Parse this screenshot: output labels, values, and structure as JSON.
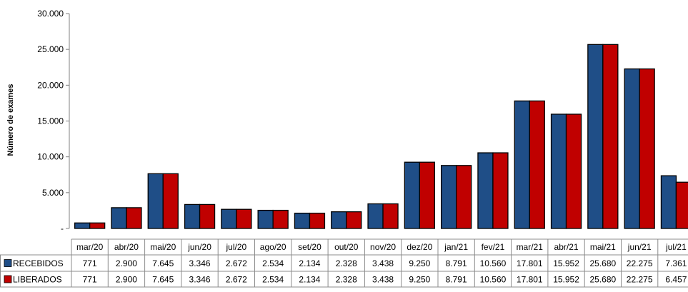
{
  "chart_data": {
    "type": "bar",
    "ylabel": "Número de exames",
    "ylim": [
      0,
      30000
    ],
    "yticks": [
      0,
      5000,
      10000,
      15000,
      20000,
      25000,
      30000
    ],
    "ytick_labels": [
      "-",
      "5.000",
      "10.000",
      "15.000",
      "20.000",
      "25.000",
      "30.000"
    ],
    "grid": false,
    "categories": [
      "mar/20",
      "abr/20",
      "mai/20",
      "jun/20",
      "jul/20",
      "ago/20",
      "set/20",
      "out/20",
      "nov/20",
      "dez/20",
      "jan/21",
      "fev/21",
      "mar/21",
      "abr/21",
      "mai/21",
      "jun/21",
      "jul/21"
    ],
    "series": [
      {
        "name": "RECEBIDOS",
        "color": "#1F4E87",
        "values": [
          771,
          2900,
          7645,
          3346,
          2672,
          2534,
          2134,
          2328,
          3438,
          9250,
          8791,
          10560,
          17801,
          15952,
          25680,
          22275,
          7361
        ],
        "labels": [
          "771",
          "2.900",
          "7.645",
          "3.346",
          "2.672",
          "2.534",
          "2.134",
          "2.328",
          "3.438",
          "9.250",
          "8.791",
          "10.560",
          "17.801",
          "15.952",
          "25.680",
          "22.275",
          "7.361"
        ]
      },
      {
        "name": "LIBERADOS",
        "color": "#C00000",
        "values": [
          771,
          2900,
          7645,
          3346,
          2672,
          2534,
          2134,
          2328,
          3438,
          9250,
          8791,
          10560,
          17801,
          15952,
          25680,
          22275,
          6457
        ],
        "labels": [
          "771",
          "2.900",
          "7.645",
          "3.346",
          "2.672",
          "2.534",
          "2.134",
          "2.328",
          "3.438",
          "9.250",
          "8.791",
          "10.560",
          "17.801",
          "15.952",
          "25.680",
          "22.275",
          "6.457"
        ]
      }
    ],
    "legend": "data-table"
  }
}
